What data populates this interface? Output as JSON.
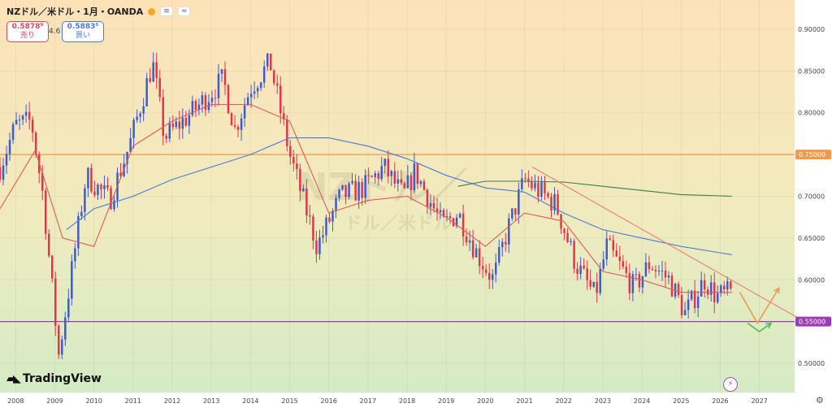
{
  "header": {
    "symbol": "NZドル／米ドル・1月・OANDA",
    "status_icon": "orange-dot-icon",
    "mini_buttons": [
      "≡",
      "≈"
    ]
  },
  "order": {
    "sell_price": "0.5878⁹",
    "sell_label": "売り",
    "spread": "4.6",
    "buy_price": "0.5883⁵",
    "buy_label": "買い"
  },
  "watermark": {
    "line1": "NZドル／",
    "line2": "ドル／米ドル"
  },
  "logo": "TradingView",
  "colors": {
    "up": "#3e5ad1",
    "down": "#e0364a",
    "ma_short": "#e35a5a",
    "ma_mid": "#4b7ad8",
    "ma_long": "#3d7a52",
    "resistance": "#f19a4b",
    "support": "#9b3cb5",
    "trendline": "#f07a7a"
  },
  "chart_data": {
    "type": "candlestick",
    "symbol": "NZD/USD",
    "timeframe": "1M",
    "xlim": [
      2007.6,
      2027.9
    ],
    "ylim": [
      0.465,
      0.935
    ],
    "x_ticks": [
      "2008",
      "2009",
      "2010",
      "2011",
      "2012",
      "2013",
      "2014",
      "2015",
      "2016",
      "2017",
      "2018",
      "2019",
      "2020",
      "2021",
      "2022",
      "2023",
      "2024",
      "2025",
      "2026",
      "2027"
    ],
    "y_ticks": [
      "0.90000",
      "0.85000",
      "0.80000",
      "0.75000",
      "0.70000",
      "0.65000",
      "0.60000",
      "0.55000",
      "0.50000"
    ],
    "anchors": [
      [
        2007.6,
        0.735
      ],
      [
        2008.0,
        0.785
      ],
      [
        2008.4,
        0.79
      ],
      [
        2008.7,
        0.7
      ],
      [
        2009.1,
        0.51
      ],
      [
        2009.3,
        0.57
      ],
      [
        2009.8,
        0.725
      ],
      [
        2010.4,
        0.695
      ],
      [
        2010.9,
        0.76
      ],
      [
        2011.5,
        0.86
      ],
      [
        2011.8,
        0.77
      ],
      [
        2012.5,
        0.8
      ],
      [
        2013.3,
        0.84
      ],
      [
        2013.6,
        0.78
      ],
      [
        2014.0,
        0.83
      ],
      [
        2014.5,
        0.86
      ],
      [
        2015.0,
        0.75
      ],
      [
        2015.7,
        0.64
      ],
      [
        2016.3,
        0.7
      ],
      [
        2016.9,
        0.71
      ],
      [
        2017.4,
        0.735
      ],
      [
        2017.9,
        0.7
      ],
      [
        2018.2,
        0.73
      ],
      [
        2018.9,
        0.665
      ],
      [
        2019.3,
        0.68
      ],
      [
        2019.8,
        0.63
      ],
      [
        2020.2,
        0.6
      ],
      [
        2020.5,
        0.65
      ],
      [
        2021.0,
        0.72
      ],
      [
        2021.8,
        0.69
      ],
      [
        2022.3,
        0.62
      ],
      [
        2022.8,
        0.58
      ],
      [
        2023.1,
        0.64
      ],
      [
        2023.8,
        0.59
      ],
      [
        2024.2,
        0.62
      ],
      [
        2024.7,
        0.6
      ],
      [
        2025.1,
        0.56
      ],
      [
        2025.6,
        0.6
      ],
      [
        2025.9,
        0.58
      ],
      [
        2026.3,
        0.585
      ]
    ],
    "horizontal_lines": [
      {
        "price": 0.75,
        "label": "0.75000",
        "color": "#f19a4b"
      },
      {
        "price": 0.55,
        "label": "0.55000",
        "color": "#9b3cb5"
      }
    ],
    "trendline": {
      "from": [
        2021.2,
        0.735
      ],
      "to": [
        2028.0,
        0.554
      ]
    },
    "moving_averages": [
      {
        "name": "short",
        "color": "#e35a5a",
        "points": [
          [
            2007.6,
            0.685
          ],
          [
            2008.5,
            0.755
          ],
          [
            2009.2,
            0.65
          ],
          [
            2010.0,
            0.64
          ],
          [
            2011.0,
            0.76
          ],
          [
            2012.0,
            0.79
          ],
          [
            2013.0,
            0.81
          ],
          [
            2014.0,
            0.81
          ],
          [
            2015.0,
            0.79
          ],
          [
            2016.0,
            0.68
          ],
          [
            2017.0,
            0.695
          ],
          [
            2018.0,
            0.7
          ],
          [
            2019.0,
            0.675
          ],
          [
            2020.0,
            0.64
          ],
          [
            2021.0,
            0.68
          ],
          [
            2022.0,
            0.67
          ],
          [
            2023.0,
            0.61
          ],
          [
            2024.0,
            0.6
          ],
          [
            2025.0,
            0.585
          ],
          [
            2026.3,
            0.585
          ]
        ]
      },
      {
        "name": "mid",
        "color": "#4b7ad8",
        "points": [
          [
            2009.3,
            0.66
          ],
          [
            2010.0,
            0.685
          ],
          [
            2011.0,
            0.7
          ],
          [
            2012.0,
            0.72
          ],
          [
            2013.0,
            0.735
          ],
          [
            2014.0,
            0.75
          ],
          [
            2015.0,
            0.77
          ],
          [
            2016.0,
            0.77
          ],
          [
            2017.0,
            0.76
          ],
          [
            2018.0,
            0.745
          ],
          [
            2019.0,
            0.725
          ],
          [
            2020.0,
            0.71
          ],
          [
            2021.0,
            0.705
          ],
          [
            2022.0,
            0.68
          ],
          [
            2023.0,
            0.66
          ],
          [
            2024.0,
            0.65
          ],
          [
            2025.0,
            0.64
          ],
          [
            2026.3,
            0.63
          ]
        ]
      },
      {
        "name": "long",
        "color": "#3d7a52",
        "points": [
          [
            2019.3,
            0.712
          ],
          [
            2020.0,
            0.718
          ],
          [
            2021.0,
            0.718
          ],
          [
            2022.0,
            0.717
          ],
          [
            2023.0,
            0.712
          ],
          [
            2024.0,
            0.707
          ],
          [
            2025.0,
            0.702
          ],
          [
            2026.3,
            0.7
          ]
        ]
      }
    ],
    "scenario_arrows": [
      {
        "color": "#f19a4b",
        "points": [
          [
            2026.5,
            0.585
          ],
          [
            2026.95,
            0.548
          ],
          [
            2027.5,
            0.59
          ]
        ]
      },
      {
        "color": "#5cb85c",
        "points": [
          [
            2026.7,
            0.548
          ],
          [
            2027.0,
            0.538
          ],
          [
            2027.3,
            0.548
          ]
        ]
      }
    ]
  }
}
